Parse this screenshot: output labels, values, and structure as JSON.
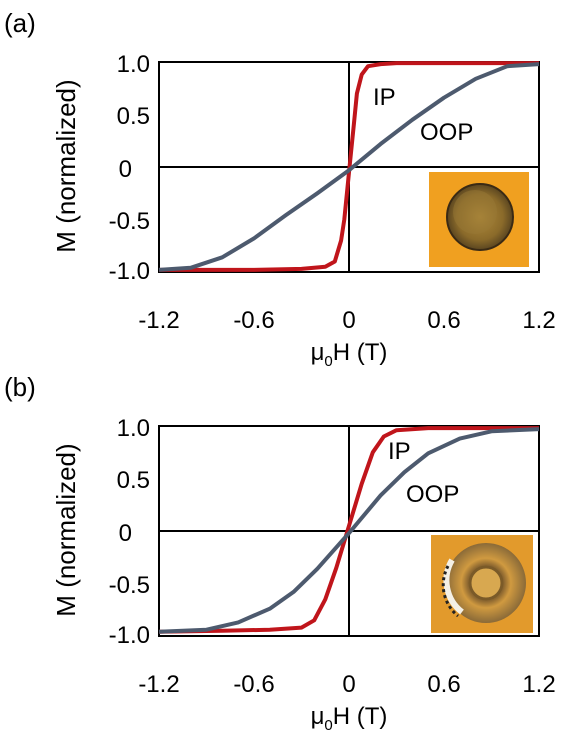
{
  "chart_data": [
    {
      "type": "line",
      "panel_label": "(a)",
      "xlabel_main": "μ",
      "xlabel_sub": "0",
      "xlabel_rest": "H (T)",
      "ylabel": "M (normalized)",
      "xlim": [
        -1.2,
        1.2
      ],
      "ylim": [
        -1.0,
        1.0
      ],
      "x_ticks": [
        "-1.2",
        "-0.6",
        "0",
        "0.6",
        "1.2"
      ],
      "y_ticks": [
        "1.0",
        "0.5",
        "0",
        "-0.5",
        "-1.0"
      ],
      "grid": false,
      "inset": "micrograph",
      "series": [
        {
          "name": "IP",
          "color": "#c0151b",
          "x": [
            -1.2,
            -1.0,
            -0.6,
            -0.3,
            -0.15,
            -0.09,
            -0.05,
            -0.03,
            0.0,
            0.03,
            0.05,
            0.08,
            0.12,
            0.2,
            0.3,
            0.6,
            1.0,
            1.2
          ],
          "y": [
            -0.98,
            -0.98,
            -0.98,
            -0.97,
            -0.95,
            -0.9,
            -0.7,
            -0.5,
            -0.05,
            0.4,
            0.7,
            0.88,
            0.96,
            0.98,
            0.99,
            0.99,
            0.99,
            0.99
          ]
        },
        {
          "name": "OOP",
          "color": "#4d5a6e",
          "x": [
            -1.2,
            -1.0,
            -0.8,
            -0.6,
            -0.4,
            -0.2,
            0.0,
            0.2,
            0.4,
            0.6,
            0.8,
            1.0,
            1.2
          ],
          "y": [
            -0.98,
            -0.96,
            -0.86,
            -0.68,
            -0.46,
            -0.25,
            -0.03,
            0.22,
            0.45,
            0.66,
            0.84,
            0.96,
            0.98
          ]
        }
      ]
    },
    {
      "type": "line",
      "panel_label": "(b)",
      "xlabel_main": "μ",
      "xlabel_sub": "0",
      "xlabel_rest": "H (T)",
      "ylabel": "M (normalized)",
      "xlim": [
        -1.2,
        1.2
      ],
      "ylim": [
        -1.0,
        1.0
      ],
      "x_ticks": [
        "-1.2",
        "-0.6",
        "0",
        "0.6",
        "1.2"
      ],
      "y_ticks": [
        "1.0",
        "0.5",
        "0",
        "-0.5",
        "-1.0"
      ],
      "grid": false,
      "inset": "micrograph",
      "series": [
        {
          "name": "IP",
          "color": "#c0151b",
          "x": [
            -1.2,
            -0.8,
            -0.5,
            -0.3,
            -0.22,
            -0.15,
            -0.08,
            0.0,
            0.08,
            0.15,
            0.22,
            0.3,
            0.5,
            0.8,
            1.2
          ],
          "y": [
            -0.96,
            -0.95,
            -0.94,
            -0.92,
            -0.85,
            -0.65,
            -0.35,
            0.05,
            0.45,
            0.75,
            0.9,
            0.96,
            0.98,
            0.98,
            0.98
          ]
        },
        {
          "name": "OOP",
          "color": "#4d5a6e",
          "x": [
            -1.2,
            -0.9,
            -0.7,
            -0.5,
            -0.35,
            -0.2,
            0.0,
            0.2,
            0.35,
            0.5,
            0.7,
            0.9,
            1.2
          ],
          "y": [
            -0.96,
            -0.94,
            -0.87,
            -0.74,
            -0.58,
            -0.36,
            -0.02,
            0.34,
            0.56,
            0.74,
            0.88,
            0.95,
            0.97
          ]
        }
      ]
    }
  ]
}
